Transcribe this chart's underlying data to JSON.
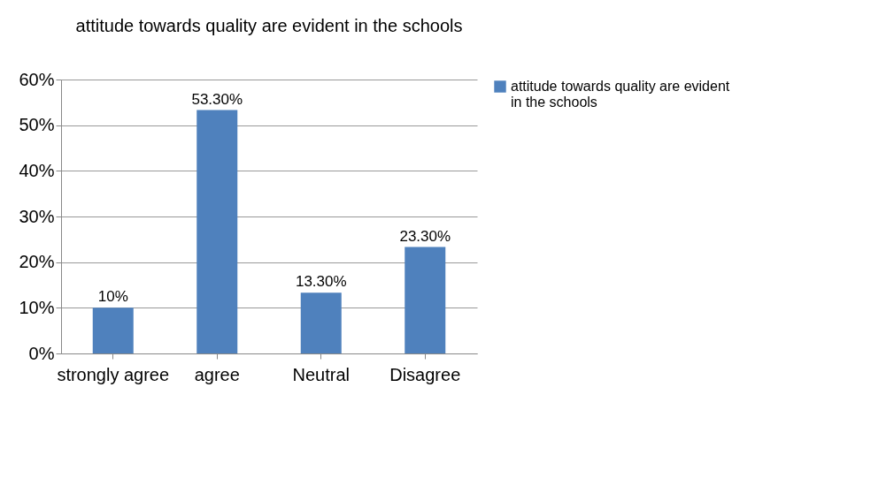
{
  "chart_data": {
    "type": "bar",
    "title": "attitude towards quality are evident in the schools",
    "categories": [
      "strongly agree",
      "agree",
      "Neutral",
      "Disagree"
    ],
    "series": [
      {
        "name": "attitude towards quality are evident in the schools",
        "color": "#4f81bd",
        "values": [
          10,
          53.3,
          13.3,
          23.3
        ],
        "value_labels": [
          "10%",
          "53.30%",
          "13.30%",
          "23.30%"
        ]
      }
    ],
    "ylim": [
      0,
      60
    ],
    "yticks": [
      {
        "value": 0,
        "label": "0%"
      },
      {
        "value": 10,
        "label": "10%"
      },
      {
        "value": 20,
        "label": "20%"
      },
      {
        "value": 30,
        "label": "30%"
      },
      {
        "value": 40,
        "label": "40%"
      },
      {
        "value": 50,
        "label": "50%"
      },
      {
        "value": 60,
        "label": "60%"
      }
    ],
    "grid": "y",
    "legend": "right"
  }
}
